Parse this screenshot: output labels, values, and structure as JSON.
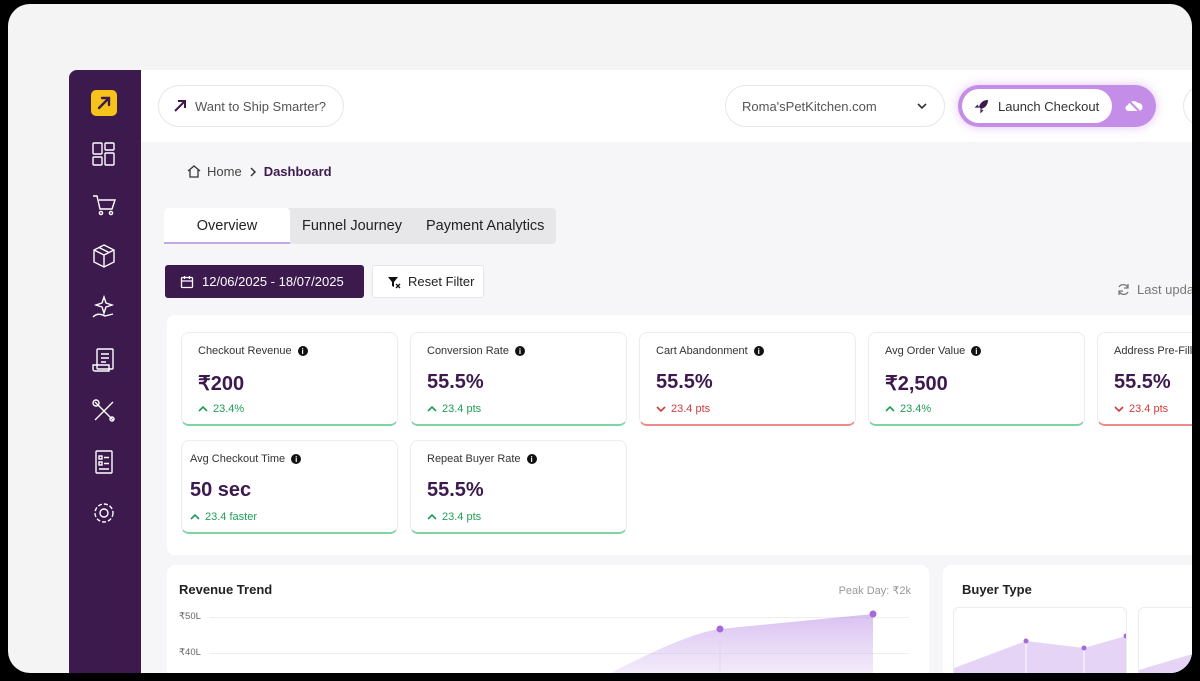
{
  "topbar": {
    "ship_text": "Want to Ship Smarter?",
    "store_name": "Roma'sPetKitchen.com",
    "launch_label": "Launch Checkout"
  },
  "breadcrumb": {
    "home": "Home",
    "current": "Dashboard"
  },
  "tabs": [
    "Overview",
    "Funnel Journey",
    "Payment Analytics"
  ],
  "filters": {
    "date_range": "12/06/2025 - 18/07/2025",
    "reset_label": "Reset Filter",
    "last_updated": "Last upda"
  },
  "kpis": [
    {
      "label": "Checkout Revenue",
      "value": "₹200",
      "change": "23.4%",
      "trend": "up"
    },
    {
      "label": "Conversion Rate",
      "value": "55.5%",
      "change": "23.4 pts",
      "trend": "up"
    },
    {
      "label": "Cart Abandonment",
      "value": "55.5%",
      "change": "23.4 pts",
      "trend": "down"
    },
    {
      "label": "Avg Order Value",
      "value": "₹2,500",
      "change": "23.4%",
      "trend": "up"
    },
    {
      "label": "Address Pre-Fill R",
      "value": "55.5%",
      "change": "23.4 pts",
      "trend": "down"
    },
    {
      "label": "Avg Checkout Time",
      "value": "50 sec",
      "change": "23.4 faster",
      "trend": "up"
    },
    {
      "label": "Repeat Buyer Rate",
      "value": "55.5%",
      "change": "23.4 pts",
      "trend": "up"
    }
  ],
  "revenue_trend": {
    "title": "Revenue Trend",
    "peak_day": "Peak Day: ₹2k",
    "y_ticks": [
      "₹50L",
      "₹40L"
    ]
  },
  "buyer_type": {
    "title": "Buyer Type"
  },
  "colors": {
    "sidebar": "#3d1a4e",
    "accent": "#c48de8",
    "logo": "#f6c31b",
    "positive": "#1f9d57",
    "negative": "#d13b3b"
  },
  "icons": {
    "sidebar": [
      "dashboard-icon",
      "cart-icon",
      "box-icon",
      "magic-hand-icon",
      "receipt-icon",
      "tools-icon",
      "checklist-icon",
      "settings-icon"
    ]
  }
}
